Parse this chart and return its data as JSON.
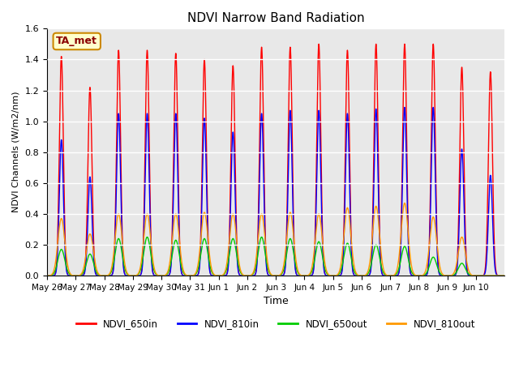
{
  "title": "NDVI Narrow Band Radiation",
  "xlabel": "Time",
  "ylabel": "NDVI Channels (W/m2/nm)",
  "ylim": [
    0.0,
    1.6
  ],
  "yticks": [
    0.0,
    0.2,
    0.4,
    0.6,
    0.8,
    1.0,
    1.2,
    1.4,
    1.6
  ],
  "xtick_labels": [
    "May 26",
    "May 27",
    "May 28",
    "May 29",
    "May 30",
    "May 31",
    "Jun 1",
    "Jun 2",
    "Jun 3",
    "Jun 4",
    "Jun 5",
    "Jun 6",
    "Jun 7",
    "Jun 8",
    "Jun 9",
    "Jun 10"
  ],
  "colors": {
    "NDVI_650in": "#ff0000",
    "NDVI_810in": "#0000ff",
    "NDVI_650out": "#00cc00",
    "NDVI_810out": "#ff9900"
  },
  "legend_labels": [
    "NDVI_650in",
    "NDVI_810in",
    "NDVI_650out",
    "NDVI_810out"
  ],
  "annotation_text": "TA_met",
  "annotation_color": "#8b0000",
  "bg_color": "#e8e8e8",
  "fig_bg_color": "#ffffff",
  "n_days": 16,
  "peaks_650in": [
    1.42,
    1.22,
    1.46,
    1.46,
    1.44,
    1.4,
    1.36,
    1.48,
    1.48,
    1.5,
    1.46,
    1.5,
    1.5,
    1.5,
    1.35,
    1.32
  ],
  "peaks_810in": [
    0.88,
    0.64,
    1.05,
    1.05,
    1.05,
    1.02,
    0.93,
    1.05,
    1.07,
    1.07,
    1.05,
    1.08,
    1.09,
    1.09,
    0.82,
    0.65
  ],
  "peaks_650out": [
    0.17,
    0.14,
    0.24,
    0.25,
    0.23,
    0.24,
    0.24,
    0.25,
    0.24,
    0.22,
    0.21,
    0.2,
    0.19,
    0.12,
    0.08,
    0.0
  ],
  "peaks_810out": [
    0.37,
    0.27,
    0.4,
    0.4,
    0.4,
    0.41,
    0.4,
    0.4,
    0.41,
    0.4,
    0.44,
    0.45,
    0.47,
    0.38,
    0.25,
    0.0
  ],
  "line_width": 1.0,
  "points_per_day": 200,
  "grid_color": "#ffffff",
  "grid_linewidth": 1.0
}
